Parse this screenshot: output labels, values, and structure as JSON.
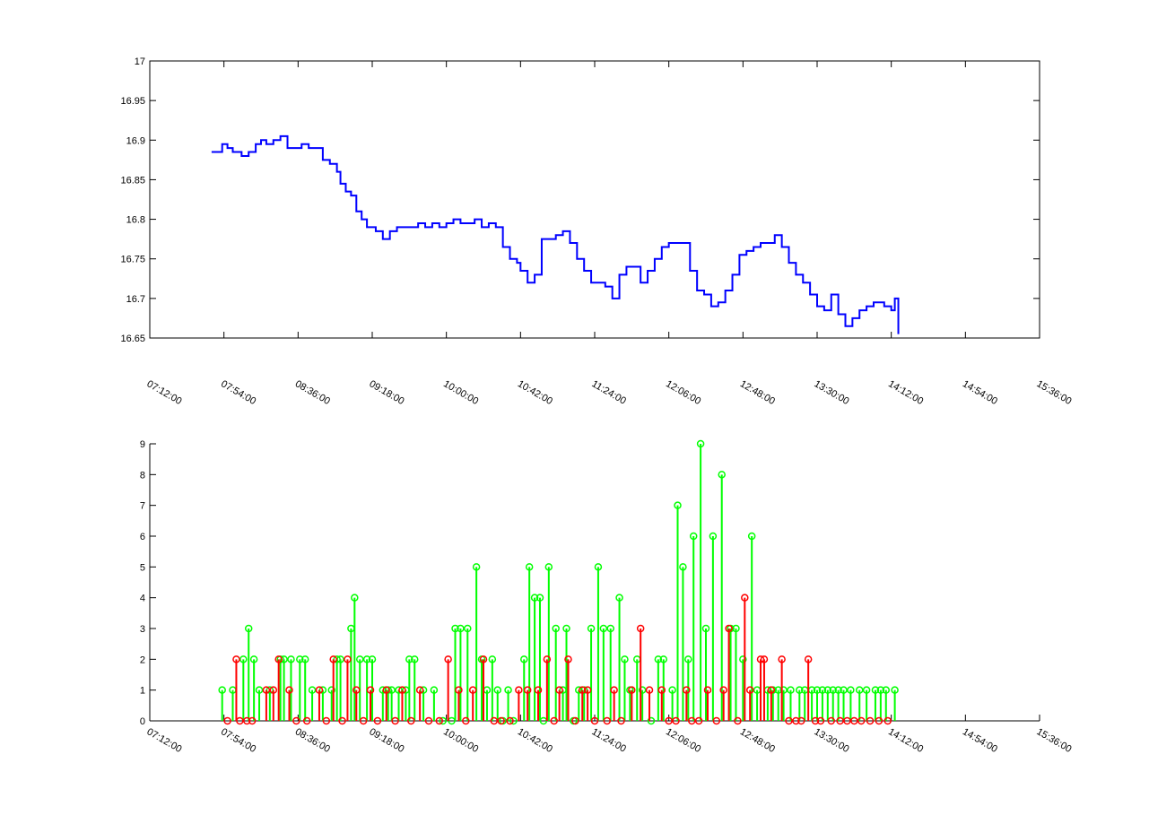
{
  "chart_data": [
    {
      "type": "line",
      "title": "",
      "xlabel": "",
      "ylabel": "",
      "x_ticks": [
        "07:12:00",
        "07:54:00",
        "08:36:00",
        "09:18:00",
        "10:00:00",
        "10:42:00",
        "11:24:00",
        "12:06:00",
        "12:48:00",
        "13:30:00",
        "14:12:00",
        "14:54:00",
        "15:36:00"
      ],
      "y_ticks": [
        "16.65",
        "16.7",
        "16.75",
        "16.8",
        "16.85",
        "16.9",
        "16.95",
        "17"
      ],
      "xlim": [
        "07:12:00",
        "15:36:00"
      ],
      "ylim": [
        16.65,
        17
      ],
      "series": [
        {
          "color": "#0000ff",
          "x": [
            "07:47",
            "07:50",
            "07:53",
            "07:56",
            "07:59",
            "08:04",
            "08:08",
            "08:12",
            "08:15",
            "08:18",
            "08:22",
            "08:26",
            "08:30",
            "08:34",
            "08:38",
            "08:42",
            "08:46",
            "08:50",
            "08:54",
            "08:58",
            "09:00",
            "09:03",
            "09:06",
            "09:09",
            "09:12",
            "09:15",
            "09:18",
            "09:20",
            "09:24",
            "09:28",
            "09:32",
            "09:36",
            "09:40",
            "09:44",
            "09:48",
            "09:52",
            "09:56",
            "10:00",
            "10:04",
            "10:08",
            "10:12",
            "10:16",
            "10:20",
            "10:24",
            "10:28",
            "10:32",
            "10:36",
            "10:40",
            "10:42",
            "10:46",
            "10:50",
            "10:54",
            "10:58",
            "11:02",
            "11:06",
            "11:10",
            "11:14",
            "11:18",
            "11:22",
            "11:26",
            "11:30",
            "11:34",
            "11:38",
            "11:42",
            "11:46",
            "11:50",
            "11:54",
            "11:58",
            "12:02",
            "12:06",
            "12:10",
            "12:14",
            "12:18",
            "12:22",
            "12:26",
            "12:30",
            "12:34",
            "12:38",
            "12:42",
            "12:46",
            "12:50",
            "12:54",
            "12:58",
            "13:02",
            "13:06",
            "13:10",
            "13:14",
            "13:18",
            "13:22",
            "13:26",
            "13:30",
            "13:34",
            "13:38",
            "13:42",
            "13:46",
            "13:50",
            "13:54",
            "13:58",
            "14:02",
            "14:06",
            "14:08",
            "14:12",
            "14:14",
            "14:16"
          ],
          "y": [
            16.885,
            16.885,
            16.895,
            16.89,
            16.885,
            16.88,
            16.885,
            16.895,
            16.9,
            16.895,
            16.9,
            16.905,
            16.89,
            16.89,
            16.895,
            16.89,
            16.89,
            16.875,
            16.87,
            16.86,
            16.845,
            16.835,
            16.83,
            16.81,
            16.8,
            16.79,
            16.79,
            16.785,
            16.775,
            16.785,
            16.79,
            16.79,
            16.79,
            16.795,
            16.79,
            16.795,
            16.79,
            16.795,
            16.8,
            16.795,
            16.795,
            16.8,
            16.79,
            16.795,
            16.79,
            16.765,
            16.75,
            16.745,
            16.735,
            16.72,
            16.73,
            16.775,
            16.775,
            16.78,
            16.785,
            16.77,
            16.75,
            16.735,
            16.72,
            16.72,
            16.715,
            16.7,
            16.73,
            16.74,
            16.74,
            16.72,
            16.735,
            16.75,
            16.765,
            16.77,
            16.77,
            16.77,
            16.735,
            16.71,
            16.705,
            16.69,
            16.695,
            16.71,
            16.73,
            16.755,
            16.76,
            16.765,
            16.77,
            16.77,
            16.78,
            16.765,
            16.745,
            16.73,
            16.72,
            16.705,
            16.69,
            16.685,
            16.705,
            16.68,
            16.665,
            16.675,
            16.685,
            16.69,
            16.695,
            16.695,
            16.69,
            16.685,
            16.7,
            16.655
          ]
        }
      ],
      "grid": false
    },
    {
      "type": "stem",
      "title": "",
      "xlabel": "",
      "ylabel": "",
      "x_ticks": [
        "07:12:00",
        "07:54:00",
        "08:36:00",
        "09:18:00",
        "10:00:00",
        "10:42:00",
        "11:24:00",
        "12:06:00",
        "12:48:00",
        "13:30:00",
        "14:12:00",
        "14:54:00",
        "15:36:00"
      ],
      "y_ticks": [
        "0",
        "1",
        "2",
        "3",
        "4",
        "5",
        "6",
        "7",
        "8",
        "9"
      ],
      "xlim": [
        "07:12:00",
        "15:36:00"
      ],
      "ylim": [
        0,
        9
      ],
      "series": [
        {
          "color": "#00ff00",
          "x": [
            "07:53",
            "07:59",
            "08:05",
            "08:08",
            "08:11",
            "08:14",
            "08:20",
            "08:26",
            "08:28",
            "08:32",
            "08:37",
            "08:40",
            "08:44",
            "08:50",
            "08:55",
            "08:58",
            "09:00",
            "09:06",
            "09:08",
            "09:11",
            "09:15",
            "09:18",
            "09:24",
            "09:27",
            "09:29",
            "09:33",
            "09:37",
            "09:39",
            "09:42",
            "09:47",
            "09:53",
            "09:58",
            "10:03",
            "10:05",
            "10:08",
            "10:12",
            "10:17",
            "10:20",
            "10:23",
            "10:26",
            "10:29",
            "10:32",
            "10:35",
            "10:38",
            "10:44",
            "10:47",
            "10:50",
            "10:53",
            "10:55",
            "10:58",
            "11:02",
            "11:06",
            "11:08",
            "11:12",
            "11:15",
            "11:18",
            "11:22",
            "11:26",
            "11:29",
            "11:33",
            "11:38",
            "11:41",
            "11:44",
            "11:48",
            "11:51",
            "11:56",
            "12:00",
            "12:03",
            "12:08",
            "12:11",
            "12:14",
            "12:17",
            "12:20",
            "12:24",
            "12:27",
            "12:31",
            "12:36",
            "12:41",
            "12:44",
            "12:48",
            "12:53",
            "12:56",
            "13:02",
            "13:05",
            "13:08",
            "13:11",
            "13:15",
            "13:20",
            "13:23",
            "13:27",
            "13:30",
            "13:33",
            "13:36",
            "13:39",
            "13:42",
            "13:45",
            "13:49",
            "13:54",
            "13:58",
            "14:03",
            "14:06",
            "14:09",
            "14:14"
          ],
          "y": [
            1,
            1,
            2,
            3,
            2,
            1,
            1,
            2,
            2,
            2,
            2,
            2,
            1,
            1,
            1,
            2,
            2,
            3,
            4,
            2,
            2,
            2,
            1,
            1,
            1,
            1,
            1,
            2,
            2,
            1,
            1,
            0,
            0,
            3,
            3,
            3,
            5,
            2,
            1,
            2,
            1,
            0,
            1,
            0,
            2,
            5,
            4,
            4,
            0,
            5,
            3,
            1,
            3,
            0,
            1,
            1,
            3,
            5,
            3,
            3,
            4,
            2,
            1,
            2,
            1,
            0,
            2,
            2,
            1,
            7,
            5,
            2,
            6,
            9,
            3,
            6,
            8,
            3,
            3,
            2,
            6,
            1,
            1,
            1,
            1,
            1,
            1,
            1,
            1,
            1,
            1,
            1,
            1,
            1,
            1,
            1,
            1,
            1,
            1,
            1,
            1,
            1,
            1
          ]
        },
        {
          "color": "#ff0000",
          "x": [
            "07:56",
            "08:01",
            "08:03",
            "08:07",
            "08:10",
            "08:18",
            "08:22",
            "08:25",
            "08:31",
            "08:35",
            "08:41",
            "08:48",
            "08:52",
            "08:56",
            "09:01",
            "09:04",
            "09:09",
            "09:13",
            "09:17",
            "09:21",
            "09:26",
            "09:31",
            "09:35",
            "09:40",
            "09:45",
            "09:50",
            "09:56",
            "10:01",
            "10:07",
            "10:11",
            "10:15",
            "10:21",
            "10:27",
            "10:31",
            "10:36",
            "10:41",
            "10:46",
            "10:52",
            "10:57",
            "11:01",
            "11:04",
            "11:09",
            "11:13",
            "11:17",
            "11:20",
            "11:24",
            "11:31",
            "11:35",
            "11:39",
            "11:45",
            "11:50",
            "11:55",
            "12:02",
            "12:06",
            "12:10",
            "12:16",
            "12:19",
            "12:23",
            "12:28",
            "12:33",
            "12:37",
            "12:40",
            "12:45",
            "12:49",
            "12:52",
            "12:58",
            "13:00",
            "13:04",
            "13:10",
            "13:14",
            "13:18",
            "13:21",
            "13:25",
            "13:29",
            "13:32",
            "13:38",
            "13:43",
            "13:47",
            "13:51",
            "13:55",
            "14:00",
            "14:05",
            "14:10"
          ],
          "y": [
            0,
            2,
            0,
            0,
            0,
            1,
            1,
            2,
            1,
            0,
            0,
            1,
            0,
            2,
            0,
            2,
            1,
            0,
            1,
            0,
            1,
            0,
            1,
            0,
            1,
            0,
            0,
            2,
            1,
            0,
            1,
            2,
            0,
            0,
            0,
            1,
            1,
            1,
            2,
            0,
            1,
            2,
            0,
            1,
            1,
            0,
            0,
            1,
            0,
            1,
            3,
            1,
            1,
            0,
            0,
            1,
            0,
            0,
            1,
            0,
            1,
            3,
            0,
            4,
            1,
            2,
            2,
            1,
            2,
            0,
            0,
            0,
            2,
            0,
            0,
            0,
            0,
            0,
            0,
            0,
            0,
            0,
            0
          ]
        }
      ],
      "grid": false
    }
  ]
}
